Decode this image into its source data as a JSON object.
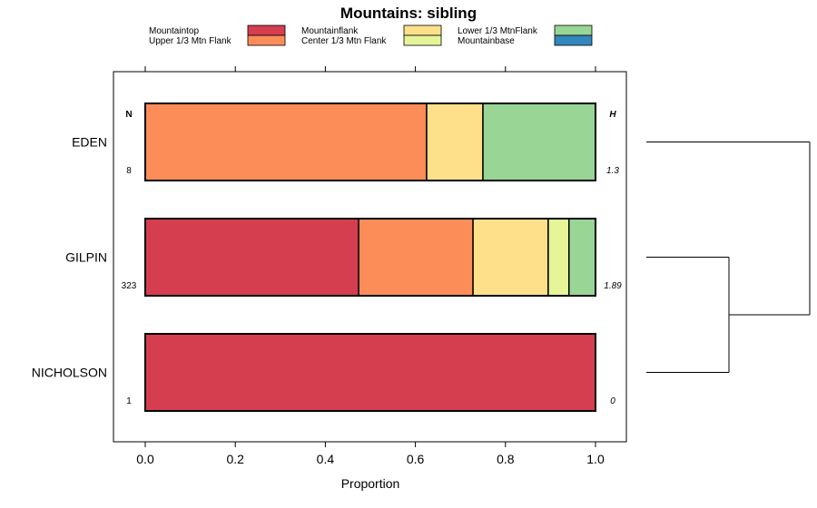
{
  "chart_data": {
    "type": "bar",
    "orientation": "horizontal",
    "stacked": true,
    "title": "Mountains: sibling",
    "xlabel": "Proportion",
    "ylabel": "",
    "xlim": [
      -0.07,
      1.07
    ],
    "x_ticks": [
      "0.0",
      "0.2",
      "0.4",
      "0.6",
      "0.8",
      "1.0"
    ],
    "x_tick_values": [
      0,
      0.2,
      0.4,
      0.6,
      0.8,
      1.0
    ],
    "legend_position": "top",
    "categories": [
      "EDEN",
      "GILPIN",
      "NICHOLSON"
    ],
    "series": [
      {
        "name": "Mountaintop",
        "color": "#d53e4f",
        "values": [
          0,
          0.474,
          1.0
        ]
      },
      {
        "name": "Upper 1/3 Mtn Flank",
        "color": "#fc8d59",
        "values": [
          0.625,
          0.254,
          0
        ]
      },
      {
        "name": "Mountainflank",
        "color": "#fee08b",
        "values": [
          0.125,
          0.167,
          0
        ]
      },
      {
        "name": "Center 1/3 Mtn Flank",
        "color": "#e6f598",
        "values": [
          0,
          0.046,
          0
        ]
      },
      {
        "name": "Lower 1/3 MtnFlank",
        "color": "#99d594",
        "values": [
          0.25,
          0.059,
          0
        ]
      },
      {
        "name": "Mountainbase",
        "color": "#3288bd",
        "values": [
          0,
          0,
          0
        ]
      }
    ],
    "n_header": "N",
    "h_header": "H",
    "n_values": [
      "8",
      "323",
      "1"
    ],
    "h_values": [
      "1.3",
      "1.89",
      "0"
    ],
    "dendrogram": "EDEN joins (GILPIN, NICHOLSON)"
  }
}
